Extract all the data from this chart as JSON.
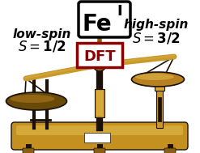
{
  "background_color": "#ffffff",
  "figsize": [
    2.47,
    1.89
  ],
  "dpi": 100,
  "fei_text": "Fe",
  "fei_superscript": "I",
  "dft_text": "DFT",
  "low_spin_line1": "low-spin",
  "low_spin_line2": "S = 1/2",
  "high_spin_line1": "high-spin",
  "high_spin_line2": "S = 3/2",
  "scale_brass": "#c8982a",
  "scale_brass_light": "#d4a93a",
  "scale_brass_dark": "#8a6010",
  "scale_black": "#1a1008",
  "scale_pan": "#6a4a08",
  "scale_pan_light": "#b88020",
  "base_color": "#c49020",
  "dft_border_color": "#8b0000",
  "dft_text_color": "#8b0000"
}
